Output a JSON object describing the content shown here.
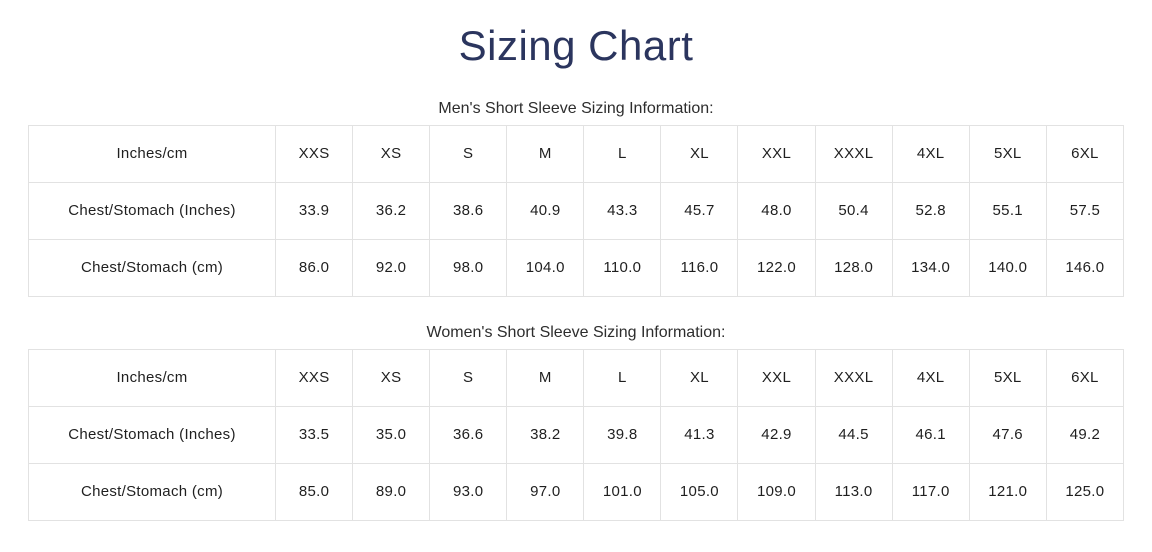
{
  "page": {
    "title": "Sizing Chart"
  },
  "colors": {
    "title-color": "#2b355e",
    "text-color": "#1f1f1f",
    "caption-color": "#2d2d2d",
    "border-color": "#e2e2e2"
  },
  "tables": [
    {
      "caption": "Men's Short Sleeve Sizing Information:",
      "columns": [
        "Inches/cm",
        "XXS",
        "XS",
        "S",
        "M",
        "L",
        "XL",
        "XXL",
        "XXXL",
        "4XL",
        "5XL",
        "6XL"
      ],
      "rows": [
        {
          "label": "Chest/Stomach (Inches)",
          "values": [
            "33.9",
            "36.2",
            "38.6",
            "40.9",
            "43.3",
            "45.7",
            "48.0",
            "50.4",
            "52.8",
            "55.1",
            "57.5"
          ]
        },
        {
          "label": "Chest/Stomach (cm)",
          "values": [
            "86.0",
            "92.0",
            "98.0",
            "104.0",
            "110.0",
            "116.0",
            "122.0",
            "128.0",
            "134.0",
            "140.0",
            "146.0"
          ]
        }
      ]
    },
    {
      "caption": "Women's Short Sleeve Sizing Information:",
      "columns": [
        "Inches/cm",
        "XXS",
        "XS",
        "S",
        "M",
        "L",
        "XL",
        "XXL",
        "XXXL",
        "4XL",
        "5XL",
        "6XL"
      ],
      "rows": [
        {
          "label": "Chest/Stomach (Inches)",
          "values": [
            "33.5",
            "35.0",
            "36.6",
            "38.2",
            "39.8",
            "41.3",
            "42.9",
            "44.5",
            "46.1",
            "47.6",
            "49.2"
          ]
        },
        {
          "label": "Chest/Stomach (cm)",
          "values": [
            "85.0",
            "89.0",
            "93.0",
            "97.0",
            "101.0",
            "105.0",
            "109.0",
            "113.0",
            "117.0",
            "121.0",
            "125.0"
          ]
        }
      ]
    }
  ]
}
